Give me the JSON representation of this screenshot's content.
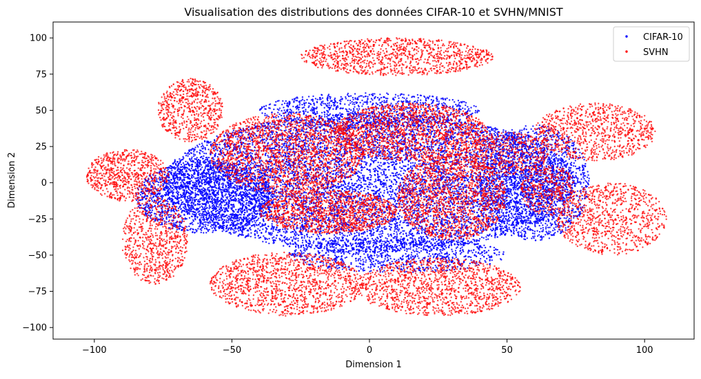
{
  "chart_data": {
    "type": "scatter",
    "title": "Visualisation des distributions des données CIFAR-10 et SVHN/MNIST",
    "xlabel": "Dimension 1",
    "ylabel": "Dimension 2",
    "xlim": [
      -115,
      118
    ],
    "ylim": [
      -108,
      111
    ],
    "xticks": [
      -100,
      -50,
      0,
      50,
      100
    ],
    "xtick_labels": [
      "−100",
      "−50",
      "0",
      "50",
      "100"
    ],
    "yticks": [
      -100,
      -75,
      -50,
      -25,
      0,
      25,
      50,
      75,
      100
    ],
    "ytick_labels": [
      "−100",
      "−75",
      "−50",
      "−25",
      "0",
      "25",
      "50",
      "75",
      "100"
    ],
    "grid": false,
    "legend_position": "top-right",
    "series": [
      {
        "name": "CIFAR-10",
        "color": "#0000ff",
        "marker": "dot",
        "regions": [
          {
            "cx": 0,
            "cy": 0,
            "rx": 75,
            "ry": 48,
            "count": 9000
          },
          {
            "cx": -60,
            "cy": -10,
            "rx": 25,
            "ry": 25,
            "count": 1800
          },
          {
            "cx": 60,
            "cy": 0,
            "rx": 20,
            "ry": 40,
            "count": 1500
          },
          {
            "cx": 0,
            "cy": 50,
            "rx": 40,
            "ry": 12,
            "count": 900
          },
          {
            "cx": 10,
            "cy": -50,
            "rx": 40,
            "ry": 12,
            "count": 900
          }
        ]
      },
      {
        "name": "SVHN",
        "color": "#ff0000",
        "marker": "dot",
        "regions": [
          {
            "cx": 10,
            "cy": 87,
            "rx": 35,
            "ry": 13,
            "count": 1100
          },
          {
            "cx": -65,
            "cy": 50,
            "rx": 12,
            "ry": 22,
            "count": 650
          },
          {
            "cx": -88,
            "cy": 5,
            "rx": 15,
            "ry": 18,
            "count": 750
          },
          {
            "cx": -78,
            "cy": -40,
            "rx": 12,
            "ry": 30,
            "count": 750
          },
          {
            "cx": -30,
            "cy": -70,
            "rx": 28,
            "ry": 22,
            "count": 1300
          },
          {
            "cx": 25,
            "cy": -72,
            "rx": 30,
            "ry": 20,
            "count": 1300
          },
          {
            "cx": 82,
            "cy": 35,
            "rx": 22,
            "ry": 20,
            "count": 900
          },
          {
            "cx": 88,
            "cy": -25,
            "rx": 20,
            "ry": 25,
            "count": 900
          },
          {
            "cx": -30,
            "cy": 20,
            "rx": 28,
            "ry": 28,
            "count": 2000
          },
          {
            "cx": 15,
            "cy": 35,
            "rx": 28,
            "ry": 20,
            "count": 1600
          },
          {
            "cx": 30,
            "cy": -10,
            "rx": 20,
            "ry": 30,
            "count": 1600
          },
          {
            "cx": -15,
            "cy": -20,
            "rx": 25,
            "ry": 15,
            "count": 1300
          },
          {
            "cx": 50,
            "cy": 20,
            "rx": 15,
            "ry": 15,
            "count": 500
          },
          {
            "cx": 65,
            "cy": -5,
            "rx": 10,
            "ry": 18,
            "count": 400
          }
        ]
      }
    ]
  }
}
